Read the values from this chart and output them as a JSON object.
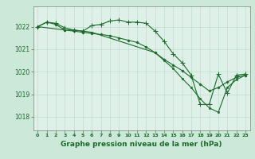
{
  "bg_color": "#cce8d8",
  "plot_bg_color": "#dff0e8",
  "grid_color": "#b8d8c8",
  "line_color": "#1a6b2a",
  "xlabel": "Graphe pression niveau de la mer (hPa)",
  "xlabel_fontsize": 6.5,
  "xlim": [
    -0.5,
    23.5
  ],
  "ylim": [
    1017.4,
    1022.9
  ],
  "yticks": [
    1018,
    1019,
    1020,
    1021,
    1022
  ],
  "xticks": [
    0,
    1,
    2,
    3,
    4,
    5,
    6,
    7,
    8,
    9,
    10,
    11,
    12,
    13,
    14,
    15,
    16,
    17,
    18,
    19,
    20,
    21,
    22,
    23
  ],
  "line1_x": [
    0,
    1,
    2,
    3,
    4,
    5,
    6,
    7,
    8,
    9,
    10,
    11,
    12,
    13,
    14,
    15,
    16,
    17,
    18,
    19,
    20,
    21,
    22,
    23
  ],
  "line1_y": [
    1022.0,
    1022.2,
    1022.15,
    1021.95,
    1021.85,
    1021.8,
    1022.05,
    1022.1,
    1022.25,
    1022.3,
    1022.2,
    1022.2,
    1022.15,
    1021.8,
    1021.35,
    1020.8,
    1020.4,
    1019.85,
    1018.55,
    1018.55,
    1019.9,
    1019.05,
    1019.85,
    1019.9
  ],
  "line2_x": [
    0,
    1,
    2,
    3,
    4,
    5,
    6,
    7,
    8,
    9,
    10,
    11,
    12,
    13,
    14,
    15,
    16,
    17,
    18,
    19,
    20,
    21,
    22,
    23
  ],
  "line2_y": [
    1022.0,
    1022.2,
    1022.1,
    1021.85,
    1021.8,
    1021.75,
    1021.7,
    1021.65,
    1021.6,
    1021.5,
    1021.4,
    1021.3,
    1021.1,
    1020.85,
    1020.55,
    1020.3,
    1020.05,
    1019.75,
    1019.45,
    1019.15,
    1019.3,
    1019.55,
    1019.75,
    1019.85
  ],
  "line3_x": [
    0,
    3,
    4,
    5,
    6,
    13,
    14,
    15,
    16,
    17,
    18,
    19,
    20,
    21,
    22,
    23
  ],
  "line3_y": [
    1022.0,
    1021.85,
    1021.85,
    1021.8,
    1021.75,
    1020.85,
    1020.5,
    1020.15,
    1019.7,
    1019.3,
    1018.8,
    1018.4,
    1018.2,
    1019.3,
    1019.65,
    1019.85
  ],
  "tick_fontsize": 5.5,
  "xtick_fontsize": 4.5,
  "marker_size": 2.5,
  "linewidth": 0.8
}
